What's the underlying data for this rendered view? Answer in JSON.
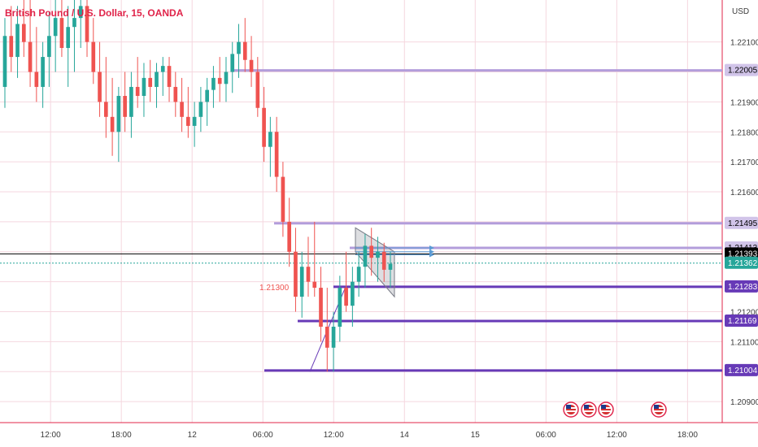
{
  "chart_data": {
    "type": "candlestick",
    "title": "British Pound / U.S. Dollar, 15, OANDA",
    "currency_label": "USD",
    "ylim": [
      1.2083,
      1.2224
    ],
    "y_ticks": [
      "1.22100",
      "1.21900",
      "1.21800",
      "1.21700",
      "1.21600",
      "1.21200",
      "1.21100",
      "1.20900"
    ],
    "x_ticks": [
      "12:00",
      "18:00",
      "12",
      "06:00",
      "12:00",
      "14",
      "15",
      "06:00",
      "12:00",
      "18:00"
    ],
    "x_range": [
      0,
      100
    ],
    "x_tick_positions": [
      7,
      16.8,
      26.6,
      36.4,
      46.2,
      56,
      65.8,
      75.6,
      85.4,
      95.2
    ],
    "candles": [
      {
        "o": 1.2195,
        "h": 1.2218,
        "l": 1.2188,
        "c": 1.2212
      },
      {
        "o": 1.2212,
        "h": 1.2222,
        "l": 1.22,
        "c": 1.2205
      },
      {
        "o": 1.2205,
        "h": 1.2222,
        "l": 1.2198,
        "c": 1.2216
      },
      {
        "o": 1.2216,
        "h": 1.2224,
        "l": 1.2205,
        "c": 1.221
      },
      {
        "o": 1.221,
        "h": 1.2224,
        "l": 1.2195,
        "c": 1.22
      },
      {
        "o": 1.22,
        "h": 1.2215,
        "l": 1.219,
        "c": 1.2195
      },
      {
        "o": 1.2195,
        "h": 1.221,
        "l": 1.2188,
        "c": 1.2205
      },
      {
        "o": 1.2205,
        "h": 1.222,
        "l": 1.2195,
        "c": 1.2212
      },
      {
        "o": 1.2212,
        "h": 1.2224,
        "l": 1.22,
        "c": 1.2218
      },
      {
        "o": 1.2218,
        "h": 1.2224,
        "l": 1.2205,
        "c": 1.2208
      },
      {
        "o": 1.2208,
        "h": 1.2222,
        "l": 1.2195,
        "c": 1.2215
      },
      {
        "o": 1.2215,
        "h": 1.2224,
        "l": 1.22,
        "c": 1.2218
      },
      {
        "o": 1.2218,
        "h": 1.2224,
        "l": 1.2208,
        "c": 1.2222
      },
      {
        "o": 1.2222,
        "h": 1.2224,
        "l": 1.2205,
        "c": 1.221
      },
      {
        "o": 1.221,
        "h": 1.2218,
        "l": 1.2196,
        "c": 1.22
      },
      {
        "o": 1.22,
        "h": 1.221,
        "l": 1.2185,
        "c": 1.219
      },
      {
        "o": 1.219,
        "h": 1.2205,
        "l": 1.2178,
        "c": 1.2185
      },
      {
        "o": 1.2185,
        "h": 1.2198,
        "l": 1.2172,
        "c": 1.218
      },
      {
        "o": 1.218,
        "h": 1.2195,
        "l": 1.217,
        "c": 1.2192
      },
      {
        "o": 1.2192,
        "h": 1.22,
        "l": 1.218,
        "c": 1.2185
      },
      {
        "o": 1.2185,
        "h": 1.22,
        "l": 1.2178,
        "c": 1.2195
      },
      {
        "o": 1.2195,
        "h": 1.2205,
        "l": 1.2188,
        "c": 1.2192
      },
      {
        "o": 1.2192,
        "h": 1.2203,
        "l": 1.2185,
        "c": 1.2198
      },
      {
        "o": 1.2198,
        "h": 1.2204,
        "l": 1.219,
        "c": 1.2195
      },
      {
        "o": 1.2195,
        "h": 1.2203,
        "l": 1.2188,
        "c": 1.22
      },
      {
        "o": 1.22,
        "h": 1.2205,
        "l": 1.2192,
        "c": 1.2202
      },
      {
        "o": 1.2202,
        "h": 1.2205,
        "l": 1.219,
        "c": 1.2195
      },
      {
        "o": 1.2195,
        "h": 1.22,
        "l": 1.2185,
        "c": 1.219
      },
      {
        "o": 1.219,
        "h": 1.2198,
        "l": 1.218,
        "c": 1.2185
      },
      {
        "o": 1.2185,
        "h": 1.2195,
        "l": 1.2178,
        "c": 1.2182
      },
      {
        "o": 1.2182,
        "h": 1.219,
        "l": 1.2175,
        "c": 1.2185
      },
      {
        "o": 1.2185,
        "h": 1.2195,
        "l": 1.218,
        "c": 1.219
      },
      {
        "o": 1.219,
        "h": 1.2198,
        "l": 1.2182,
        "c": 1.2194
      },
      {
        "o": 1.2194,
        "h": 1.2202,
        "l": 1.2188,
        "c": 1.2198
      },
      {
        "o": 1.2198,
        "h": 1.2205,
        "l": 1.219,
        "c": 1.2196
      },
      {
        "o": 1.2196,
        "h": 1.2205,
        "l": 1.219,
        "c": 1.22
      },
      {
        "o": 1.22,
        "h": 1.221,
        "l": 1.2193,
        "c": 1.2206
      },
      {
        "o": 1.2206,
        "h": 1.2216,
        "l": 1.2198,
        "c": 1.221
      },
      {
        "o": 1.221,
        "h": 1.2218,
        "l": 1.22,
        "c": 1.2204
      },
      {
        "o": 1.2204,
        "h": 1.2212,
        "l": 1.2195,
        "c": 1.22
      },
      {
        "o": 1.22,
        "h": 1.2205,
        "l": 1.2185,
        "c": 1.2188
      },
      {
        "o": 1.2188,
        "h": 1.2195,
        "l": 1.217,
        "c": 1.2175
      },
      {
        "o": 1.2175,
        "h": 1.2185,
        "l": 1.2165,
        "c": 1.218
      },
      {
        "o": 1.218,
        "h": 1.2185,
        "l": 1.216,
        "c": 1.2165
      },
      {
        "o": 1.2165,
        "h": 1.217,
        "l": 1.2145,
        "c": 1.215
      },
      {
        "o": 1.215,
        "h": 1.2158,
        "l": 1.2135,
        "c": 1.214
      },
      {
        "o": 1.214,
        "h": 1.2148,
        "l": 1.212,
        "c": 1.2125
      },
      {
        "o": 1.2125,
        "h": 1.214,
        "l": 1.2118,
        "c": 1.2135
      },
      {
        "o": 1.2135,
        "h": 1.2145,
        "l": 1.2125,
        "c": 1.213
      },
      {
        "o": 1.213,
        "h": 1.215,
        "l": 1.2125,
        "c": 1.2128
      },
      {
        "o": 1.2128,
        "h": 1.2135,
        "l": 1.211,
        "c": 1.2115
      },
      {
        "o": 1.2115,
        "h": 1.2128,
        "l": 1.21,
        "c": 1.2108
      },
      {
        "o": 1.2108,
        "h": 1.212,
        "l": 1.21,
        "c": 1.2115
      },
      {
        "o": 1.2115,
        "h": 1.2132,
        "l": 1.211,
        "c": 1.2128
      },
      {
        "o": 1.2128,
        "h": 1.214,
        "l": 1.212,
        "c": 1.2122
      },
      {
        "o": 1.2122,
        "h": 1.2135,
        "l": 1.2115,
        "c": 1.213
      },
      {
        "o": 1.213,
        "h": 1.214,
        "l": 1.2125,
        "c": 1.2135
      },
      {
        "o": 1.2135,
        "h": 1.2146,
        "l": 1.2128,
        "c": 1.2142
      },
      {
        "o": 1.2142,
        "h": 1.2148,
        "l": 1.2132,
        "c": 1.2138
      },
      {
        "o": 1.2138,
        "h": 1.2145,
        "l": 1.213,
        "c": 1.214
      },
      {
        "o": 1.214,
        "h": 1.2143,
        "l": 1.213,
        "c": 1.2134
      },
      {
        "o": 1.2134,
        "h": 1.214,
        "l": 1.2128,
        "c": 1.2136
      }
    ],
    "horizontal_levels": [
      {
        "value": 1.22005,
        "label": "1.22005",
        "color": "#b39ddb"
      },
      {
        "value": 1.21495,
        "label": "1.21495",
        "color": "#b39ddb"
      },
      {
        "value": 1.21413,
        "label": "1.21413",
        "color": "#b39ddb"
      },
      {
        "value": 1.21393,
        "label": "1.21393",
        "color": "#000000"
      },
      {
        "value": 1.21362,
        "label": "1.21362",
        "color": "#26a69a"
      },
      {
        "value": 1.21283,
        "label": "1.21283",
        "color": "#673ab7"
      },
      {
        "value": 1.21169,
        "label": "1.21169",
        "color": "#673ab7"
      },
      {
        "value": 1.21004,
        "label": "1.21004",
        "color": "#673ab7"
      }
    ],
    "annotation_text": "1.21300",
    "up_color": "#26a69a",
    "down_color": "#ef5350",
    "grid": true
  }
}
